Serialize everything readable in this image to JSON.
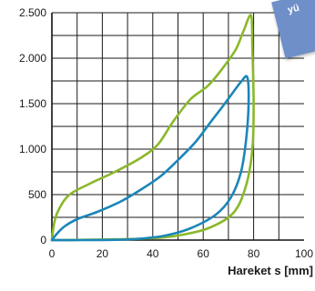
{
  "corner_tag": {
    "text": "yü"
  },
  "chart_data": {
    "type": "line",
    "title": "",
    "xlabel": "Hareket s [mm]",
    "ylabel": "",
    "xlim": [
      0,
      100
    ],
    "ylim": [
      0,
      2500
    ],
    "x_ticks": [
      0,
      20,
      40,
      60,
      80,
      100
    ],
    "x_tick_labels": [
      "0",
      "20",
      "40",
      "60",
      "80",
      "100"
    ],
    "y_ticks": [
      0,
      500,
      1000,
      1500,
      2000,
      2500
    ],
    "y_tick_labels": [
      "0",
      "500",
      "1.000",
      "1.500",
      "2.000",
      "2.500"
    ],
    "grid": true,
    "series": [
      {
        "color": "#8ab82a",
        "values": [
          [
            0,
            0
          ],
          [
            1,
            200
          ],
          [
            3,
            350
          ],
          [
            7,
            500
          ],
          [
            15,
            620
          ],
          [
            25,
            750
          ],
          [
            35,
            900
          ],
          [
            42,
            1050
          ],
          [
            48,
            1300
          ],
          [
            55,
            1550
          ],
          [
            62,
            1700
          ],
          [
            68,
            1900
          ],
          [
            73,
            2100
          ],
          [
            76,
            2300
          ],
          [
            79,
            2470
          ],
          [
            79.5,
            2100
          ],
          [
            80,
            1500
          ],
          [
            79.5,
            1000
          ],
          [
            77,
            600
          ],
          [
            72,
            300
          ],
          [
            62,
            130
          ],
          [
            50,
            50
          ],
          [
            40,
            20
          ],
          [
            25,
            8
          ],
          [
            10,
            2
          ],
          [
            0,
            0
          ]
        ]
      },
      {
        "color": "#1b86b8",
        "values": [
          [
            0,
            0
          ],
          [
            2,
            70
          ],
          [
            5,
            150
          ],
          [
            10,
            230
          ],
          [
            18,
            310
          ],
          [
            27,
            420
          ],
          [
            35,
            550
          ],
          [
            43,
            700
          ],
          [
            50,
            880
          ],
          [
            57,
            1080
          ],
          [
            63,
            1300
          ],
          [
            68,
            1480
          ],
          [
            72,
            1630
          ],
          [
            75,
            1740
          ],
          [
            77.5,
            1790
          ],
          [
            78,
            1500
          ],
          [
            77,
            1100
          ],
          [
            75,
            750
          ],
          [
            71,
            470
          ],
          [
            65,
            280
          ],
          [
            55,
            130
          ],
          [
            45,
            50
          ],
          [
            35,
            15
          ],
          [
            25,
            3
          ],
          [
            12,
            0
          ],
          [
            0,
            0
          ]
        ]
      }
    ]
  }
}
